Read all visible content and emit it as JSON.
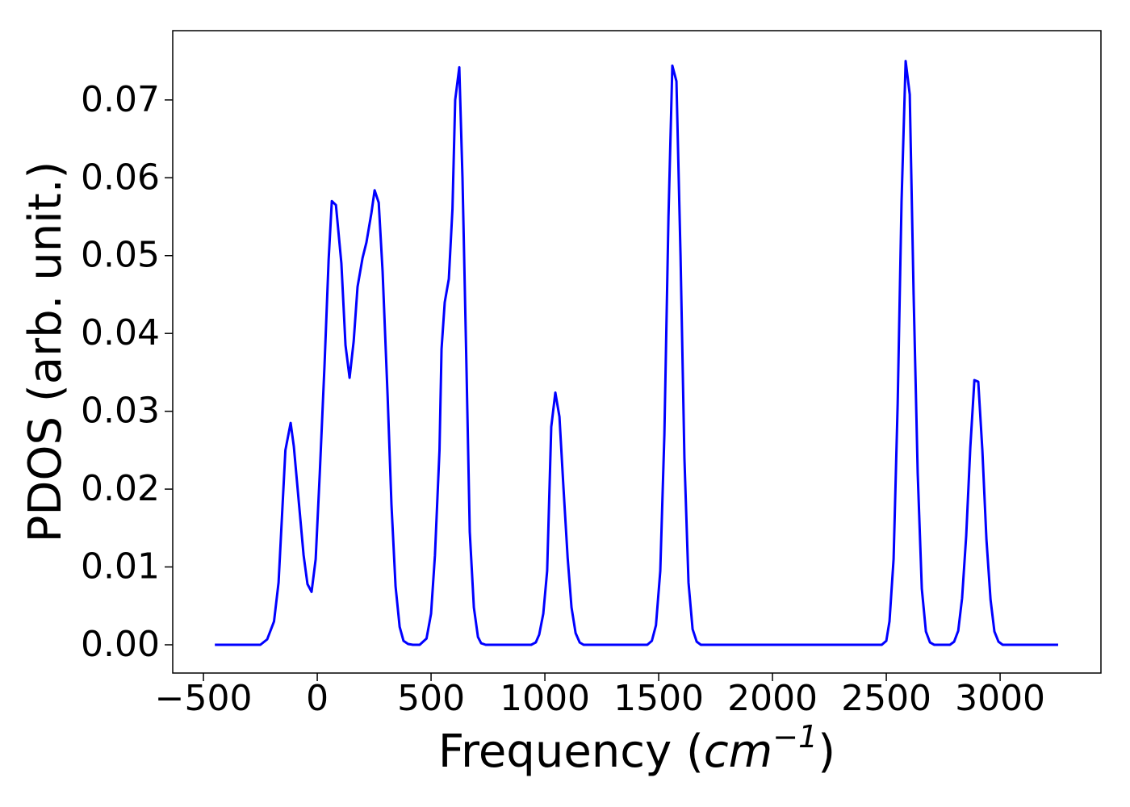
{
  "chart_data": {
    "type": "line",
    "ylabel": "PDOS (arb. unit.)",
    "xlabel_parts": [
      "Frequency (",
      "cm",
      "−1",
      ")"
    ],
    "xlim": [
      -635,
      3443
    ],
    "ylim": [
      -0.00363,
      0.0789
    ],
    "xticks": [
      {
        "value": -500,
        "label": "−500"
      },
      0,
      500,
      1000,
      1500,
      2000,
      2500,
      3000
    ],
    "yticks": [
      {
        "value": 0,
        "label": "0.00"
      },
      0.01,
      0.02,
      0.03,
      0.04,
      0.05,
      0.06,
      0.07
    ],
    "grid": false,
    "series": [
      {
        "name": "PDOS",
        "color": "#0000ff",
        "x": [
          -450,
          -250,
          -220,
          -190,
          -170,
          -140,
          -117,
          -103,
          -80,
          -60,
          -43,
          -25,
          -7,
          11,
          32,
          50,
          64,
          82,
          106,
          124,
          142,
          160,
          177,
          199,
          216,
          238,
          252,
          270,
          287,
          309,
          326,
          344,
          362,
          379,
          399,
          420,
          450,
          480,
          500,
          517,
          537,
          546,
          560,
          578,
          594,
          606,
          624,
          638,
          656,
          670,
          688,
          706,
          720,
          740,
          940,
          960,
          975,
          993,
          1010,
          1028,
          1046,
          1064,
          1082,
          1100,
          1117,
          1135,
          1153,
          1170,
          1450,
          1470,
          1488,
          1507,
          1525,
          1543,
          1560,
          1578,
          1596,
          1613,
          1631,
          1649,
          1667,
          1685,
          2480,
          2500,
          2514,
          2532,
          2550,
          2567,
          2585,
          2603,
          2620,
          2638,
          2656,
          2674,
          2692,
          2710,
          2780,
          2798,
          2816,
          2833,
          2851,
          2869,
          2887,
          2904,
          2922,
          2940,
          2958,
          2975,
          2993,
          3011,
          3255
        ],
        "values": [
          0,
          0,
          0.0007,
          0.003,
          0.008,
          0.025,
          0.0285,
          0.0255,
          0.018,
          0.0115,
          0.0078,
          0.0068,
          0.011,
          0.022,
          0.036,
          0.0495,
          0.057,
          0.0565,
          0.049,
          0.0385,
          0.0343,
          0.039,
          0.046,
          0.0497,
          0.0517,
          0.0555,
          0.0584,
          0.0568,
          0.048,
          0.032,
          0.018,
          0.0075,
          0.0023,
          0.0005,
          0.0001,
          0,
          0,
          0.0008,
          0.004,
          0.0115,
          0.025,
          0.038,
          0.044,
          0.047,
          0.056,
          0.07,
          0.0742,
          0.06,
          0.035,
          0.0145,
          0.0048,
          0.001,
          0.0002,
          0,
          0,
          0.0003,
          0.0013,
          0.004,
          0.0095,
          0.028,
          0.0324,
          0.0293,
          0.02,
          0.0112,
          0.0048,
          0.0015,
          0.0003,
          0,
          0,
          0.0005,
          0.0025,
          0.0095,
          0.027,
          0.055,
          0.0744,
          0.0724,
          0.05,
          0.024,
          0.008,
          0.002,
          0.0004,
          0,
          0,
          0.0005,
          0.003,
          0.011,
          0.031,
          0.057,
          0.075,
          0.0707,
          0.045,
          0.022,
          0.0072,
          0.0017,
          0.0003,
          0,
          0,
          0.0004,
          0.0018,
          0.006,
          0.014,
          0.0253,
          0.034,
          0.0338,
          0.025,
          0.0135,
          0.0058,
          0.0017,
          0.0004,
          0,
          0
        ]
      }
    ]
  }
}
